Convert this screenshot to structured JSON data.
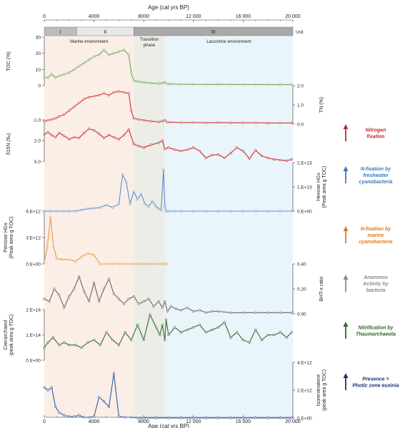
{
  "chart_data": {
    "type": "line",
    "x_axis": {
      "label": "Age (cal yrs BP)",
      "range": [
        0,
        20000
      ],
      "ticks": [
        0,
        4000,
        8000,
        12000,
        16000,
        20000
      ],
      "tick_labels": [
        "0",
        "4000",
        "8000",
        "12 000",
        "16 000",
        "20 000"
      ]
    },
    "unit_bar": {
      "header": "Unit",
      "units": [
        {
          "label": "I",
          "from": 0,
          "to": 2600
        },
        {
          "label": "II",
          "from": 2600,
          "to": 7200
        },
        {
          "label": "III",
          "from": 7200,
          "to": 20000
        }
      ]
    },
    "zones": [
      {
        "label": "Marine environment",
        "from": 0,
        "to": 7200,
        "color": "#fbeee6"
      },
      {
        "label": "Transition\nphase",
        "from": 7200,
        "to": 9700,
        "color": "#ebede6"
      },
      {
        "label": "Lacustrine environment",
        "from": 9700,
        "to": 20000,
        "color": "#eaf4fb"
      }
    ],
    "series": [
      {
        "name": "TOC",
        "ylabel": "TOC (%)",
        "axis_side": "left",
        "color": "#6aa84f",
        "ylim": [
          0,
          30
        ],
        "ticks": [
          0,
          10,
          20,
          30
        ],
        "tick_labels": [
          "0",
          "10",
          "20",
          "30"
        ],
        "x": [
          0,
          300,
          600,
          900,
          1200,
          1600,
          2000,
          2400,
          2800,
          3200,
          3600,
          4000,
          4400,
          4800,
          5200,
          5600,
          6000,
          6400,
          6800,
          7000,
          7200,
          7600,
          8000,
          8600,
          9200,
          9500,
          9700,
          9900,
          10200,
          11000,
          12000,
          13000,
          14000,
          15000,
          16000,
          17000,
          18000,
          19000,
          19900
        ],
        "values": [
          5,
          5,
          7,
          5,
          6,
          7,
          8,
          10,
          12,
          14,
          16,
          18,
          19,
          22,
          19,
          20,
          21,
          22,
          19,
          8,
          3,
          2.5,
          2,
          1.5,
          1.3,
          1.5,
          2,
          1,
          1,
          0.8,
          0.8,
          0.7,
          0.8,
          0.7,
          0.7,
          0.7,
          0.6,
          0.6,
          0.6
        ]
      },
      {
        "name": "TN",
        "ylabel": "TN (%)",
        "axis_side": "right",
        "color": "#cc3333",
        "ylim": [
          0,
          2
        ],
        "ticks": [
          0,
          1,
          2
        ],
        "tick_labels": [
          "0.0",
          "1.0",
          "2.0"
        ],
        "x": [
          0,
          300,
          600,
          900,
          1200,
          1600,
          2000,
          2400,
          2800,
          3200,
          3600,
          4000,
          4400,
          4800,
          5200,
          5600,
          6000,
          6400,
          6800,
          7000,
          7200,
          7600,
          8000,
          8600,
          9200,
          9500,
          9700,
          9900,
          10200,
          11000,
          12000,
          13000,
          14000,
          15000,
          16000,
          17000,
          18000,
          19000,
          19900
        ],
        "values": [
          0.15,
          0.2,
          0.25,
          0.3,
          0.4,
          0.5,
          0.7,
          0.9,
          1.1,
          1.3,
          1.4,
          1.45,
          1.5,
          1.6,
          1.5,
          1.65,
          1.7,
          1.65,
          1.6,
          0.7,
          0.3,
          0.25,
          0.2,
          0.15,
          0.12,
          0.15,
          0.2,
          0.1,
          0.1,
          0.08,
          0.08,
          0.07,
          0.08,
          0.07,
          0.07,
          0.07,
          0.06,
          0.06,
          0.06
        ]
      },
      {
        "name": "δ15N",
        "ylabel": "δ15N (‰)",
        "axis_side": "left",
        "color": "#c0282d",
        "ylim": [
          6,
          -1
        ],
        "ticks": [
          -1,
          2,
          5
        ],
        "tick_labels": [
          "-1.0",
          "2.0",
          "5.0"
        ],
        "x": [
          0,
          300,
          600,
          900,
          1200,
          1600,
          2000,
          2400,
          2800,
          3200,
          3600,
          4000,
          4400,
          4800,
          5200,
          5600,
          6000,
          6400,
          6800,
          7200,
          7600,
          8000,
          8600,
          9200,
          9500,
          9700,
          10000,
          10500,
          11000,
          11500,
          12000,
          12500,
          13000,
          13500,
          14000,
          14500,
          15000,
          15500,
          16000,
          16500,
          17000,
          17500,
          18000,
          18500,
          19000,
          19500,
          19900
        ],
        "values": [
          1.1,
          0.8,
          1.2,
          1.5,
          0.9,
          1.3,
          1.8,
          1.5,
          1.6,
          0.9,
          0.3,
          0.5,
          1.0,
          1.6,
          1.2,
          1.5,
          1.8,
          1.2,
          0.4,
          2.5,
          2.8,
          3.0,
          2.6,
          2.3,
          2.0,
          3.2,
          3.0,
          3.3,
          3.5,
          3.3,
          3.0,
          3.5,
          4.5,
          4.1,
          4.0,
          4.5,
          3.8,
          3.0,
          3.5,
          4.6,
          3.4,
          4.2,
          4.5,
          4.7,
          4.8,
          4.9,
          4.7
        ]
      },
      {
        "name": "Hexose HGs",
        "ylabel": "Hexose HGs\n(Peak area g TOC)",
        "axis_side": "right",
        "color": "#5b8fd0",
        "ylim": [
          0,
          20000000000000
        ],
        "ticks": [
          0,
          10000000000000,
          20000000000000
        ],
        "tick_labels": [
          "0.E+00",
          "1.E+13",
          "2.E+13"
        ],
        "x": [
          0,
          500,
          1000,
          1500,
          2000,
          2500,
          3000,
          3500,
          4000,
          4500,
          5000,
          5500,
          6000,
          6300,
          6600,
          6900,
          7200,
          7500,
          7800,
          8100,
          8400,
          8700,
          9000,
          9200,
          9400,
          9600,
          9700,
          9800,
          10000,
          10500,
          11000,
          12000,
          13000,
          14000,
          15000,
          16000,
          17000,
          18000,
          19000,
          19900
        ],
        "values": [
          0,
          0,
          0,
          0,
          0,
          0,
          500000000000.0,
          1000000000000.0,
          1200000000000.0,
          1500000000000.0,
          2500000000000.0,
          1500000000000.0,
          3000000000000.0,
          15000000000000.0,
          12000000000000.0,
          3000000000000.0,
          8000000000000.0,
          5000000000000.0,
          7000000000000.0,
          3000000000000.0,
          2000000000000.0,
          4000000000000.0,
          2000000000000.0,
          1000000000000.0,
          500000000000.0,
          17000000000000.0,
          2000000000000.0,
          0,
          0,
          0,
          0,
          0,
          0,
          0,
          0,
          0,
          0,
          0,
          0,
          0
        ]
      },
      {
        "name": "Pentose HGs",
        "ylabel": "Pentose HGs\n(Peak area g TOC)",
        "axis_side": "left",
        "color": "#e89646",
        "ylim": [
          0,
          6000000000000
        ],
        "ticks": [
          0,
          3000000000000,
          6000000000000
        ],
        "tick_labels": [
          "0.E+00",
          "3.E+12",
          "6.E+12"
        ],
        "x": [
          0,
          250,
          500,
          750,
          1000,
          1500,
          2000,
          2500,
          3000,
          3500,
          4000,
          4500,
          5000,
          5500,
          6000,
          6500,
          7000,
          7500,
          8000,
          8500,
          9000,
          9500,
          9700,
          9900
        ],
        "values": [
          200000000000.0,
          2000000000000.0,
          5300000000000.0,
          2000000000000.0,
          600000000000.0,
          500000000000.0,
          500000000000.0,
          300000000000.0,
          800000000000.0,
          1200000000000.0,
          1000000000000.0,
          0,
          0,
          0,
          0,
          0,
          0,
          0,
          0,
          0,
          0,
          0,
          0,
          0
        ]
      },
      {
        "name": "BHT-x ratio",
        "ylabel": "BHT-x ratio",
        "axis_side": "right",
        "color": "#666666",
        "ylim": [
          0,
          0.4
        ],
        "ticks": [
          0,
          0.2,
          0.4
        ],
        "tick_labels": [
          "0.00",
          "0.20",
          "0.40"
        ],
        "x": [
          0,
          400,
          800,
          1200,
          1600,
          2000,
          2400,
          2800,
          3200,
          3600,
          4000,
          4400,
          4800,
          5200,
          5600,
          6000,
          6400,
          6800,
          7200,
          7600,
          8000,
          8400,
          8800,
          9200,
          9500,
          9700,
          9900,
          10200,
          10600,
          11000,
          11500,
          12000,
          12500,
          13000,
          13500,
          14000,
          15000,
          16000,
          17000,
          18000,
          19000,
          19900
        ],
        "values": [
          0.12,
          0.1,
          0.2,
          0.15,
          0.05,
          0.14,
          0.2,
          0.3,
          0.18,
          0.1,
          0.25,
          0.1,
          0.2,
          0.28,
          0.16,
          0.12,
          0.08,
          0.12,
          0.14,
          0.08,
          0.1,
          0.12,
          0.06,
          0.1,
          0.05,
          0.1,
          0.02,
          0.06,
          0.04,
          0.03,
          0.05,
          0.02,
          0.03,
          0.01,
          0.02,
          0.02,
          0.01,
          0.01,
          0.01,
          0.01,
          0.01,
          0.01
        ]
      },
      {
        "name": "Crenarchaeol",
        "ylabel": "Crenarchaeol\n(peak area g TOC)",
        "axis_side": "left",
        "color": "#2f6b2f",
        "ylim": [
          0,
          200000000000000
        ],
        "ticks": [
          0,
          100000000000000,
          200000000000000
        ],
        "tick_labels": [
          "0.E+00",
          "1.E+14",
          "2.E+14"
        ],
        "x": [
          0,
          300,
          700,
          1200,
          1600,
          2000,
          2500,
          3000,
          3500,
          4000,
          4500,
          5000,
          5500,
          6000,
          6500,
          7000,
          7500,
          8000,
          8500,
          9000,
          9300,
          9500,
          9700,
          9800,
          10000,
          10500,
          11000,
          11500,
          12000,
          12500,
          13000,
          13500,
          14000,
          14500,
          15000,
          15500,
          16000,
          16500,
          17000,
          17500,
          18000,
          18500,
          19000,
          19500,
          19900
        ],
        "values": [
          50000000000000.0,
          70000000000000.0,
          90000000000000.0,
          60000000000000.0,
          70000000000000.0,
          60000000000000.0,
          60000000000000.0,
          50000000000000.0,
          70000000000000.0,
          80000000000000.0,
          60000000000000.0,
          110000000000000.0,
          80000000000000.0,
          60000000000000.0,
          110000000000000.0,
          80000000000000.0,
          140000000000000.0,
          80000000000000.0,
          180000000000000.0,
          130000000000000.0,
          100000000000000.0,
          140000000000000.0,
          80000000000000.0,
          160000000000000.0,
          100000000000000.0,
          130000000000000.0,
          110000000000000.0,
          120000000000000.0,
          130000000000000.0,
          140000000000000.0,
          110000000000000.0,
          120000000000000.0,
          130000000000000.0,
          150000000000000.0,
          90000000000000.0,
          110000000000000.0,
          80000000000000.0,
          70000000000000.0,
          120000000000000.0,
          80000000000000.0,
          100000000000000.0,
          100000000000000.0,
          110000000000000.0,
          90000000000000.0,
          110000000000000.0
        ]
      },
      {
        "name": "Isorenieratene",
        "ylabel": "Isorenieratene\n(peak area g TOC)",
        "axis_side": "right",
        "color": "#2d5aa8",
        "ylim": [
          0,
          4000000000000
        ],
        "ticks": [
          0,
          2000000000000,
          4000000000000
        ],
        "tick_labels": [
          "0.E+00",
          "2.E+12",
          "4.E+12"
        ],
        "x": [
          0,
          300,
          600,
          900,
          1200,
          1600,
          2000,
          2400,
          2800,
          3200,
          3600,
          4000,
          4400,
          4800,
          5200,
          5600,
          6000,
          6500,
          7000,
          7500,
          8000,
          9000,
          10000,
          11000,
          12000,
          13000,
          14000,
          15000,
          16000,
          17000,
          18000,
          19000,
          19900
        ],
        "values": [
          2200000000000.0,
          2000000000000.0,
          2200000000000.0,
          800000000000.0,
          400000000000.0,
          200000000000.0,
          100000000000.0,
          100000000000.0,
          200000000000.0,
          50000000000.0,
          50000000000.0,
          100000000000.0,
          1500000000000.0,
          1200000000000.0,
          800000000000.0,
          3200000000000.0,
          100000000000.0,
          50000000000.0,
          50000000000.0,
          0,
          0,
          0,
          0,
          0,
          0,
          0,
          0,
          0,
          0,
          0,
          0,
          0,
          0
        ]
      }
    ],
    "side_annotations": [
      {
        "text": "Nitrogen\nfixation",
        "color": "#c0282d",
        "series": "TN"
      },
      {
        "text": "N-fixation by\nfreshwater\ncyanobacteria",
        "color": "#3b78c2",
        "series": "Hexose HGs"
      },
      {
        "text": "N-fixation by\nmarine\ncyanobacteria",
        "color": "#e07a1f",
        "series": "Pentose HGs"
      },
      {
        "text": "Anammox\nActivity by\nbacteria",
        "color": "#8a8a8a",
        "series": "BHT-x ratio"
      },
      {
        "text": "Nitrification by\nThaumarchaeota",
        "color": "#2a6b1f",
        "series": "Crenarchaeol"
      },
      {
        "text": "Presence =\nPhotic zone euxinia",
        "color": "#1f2f73",
        "series": "Isorenieratene"
      }
    ]
  }
}
